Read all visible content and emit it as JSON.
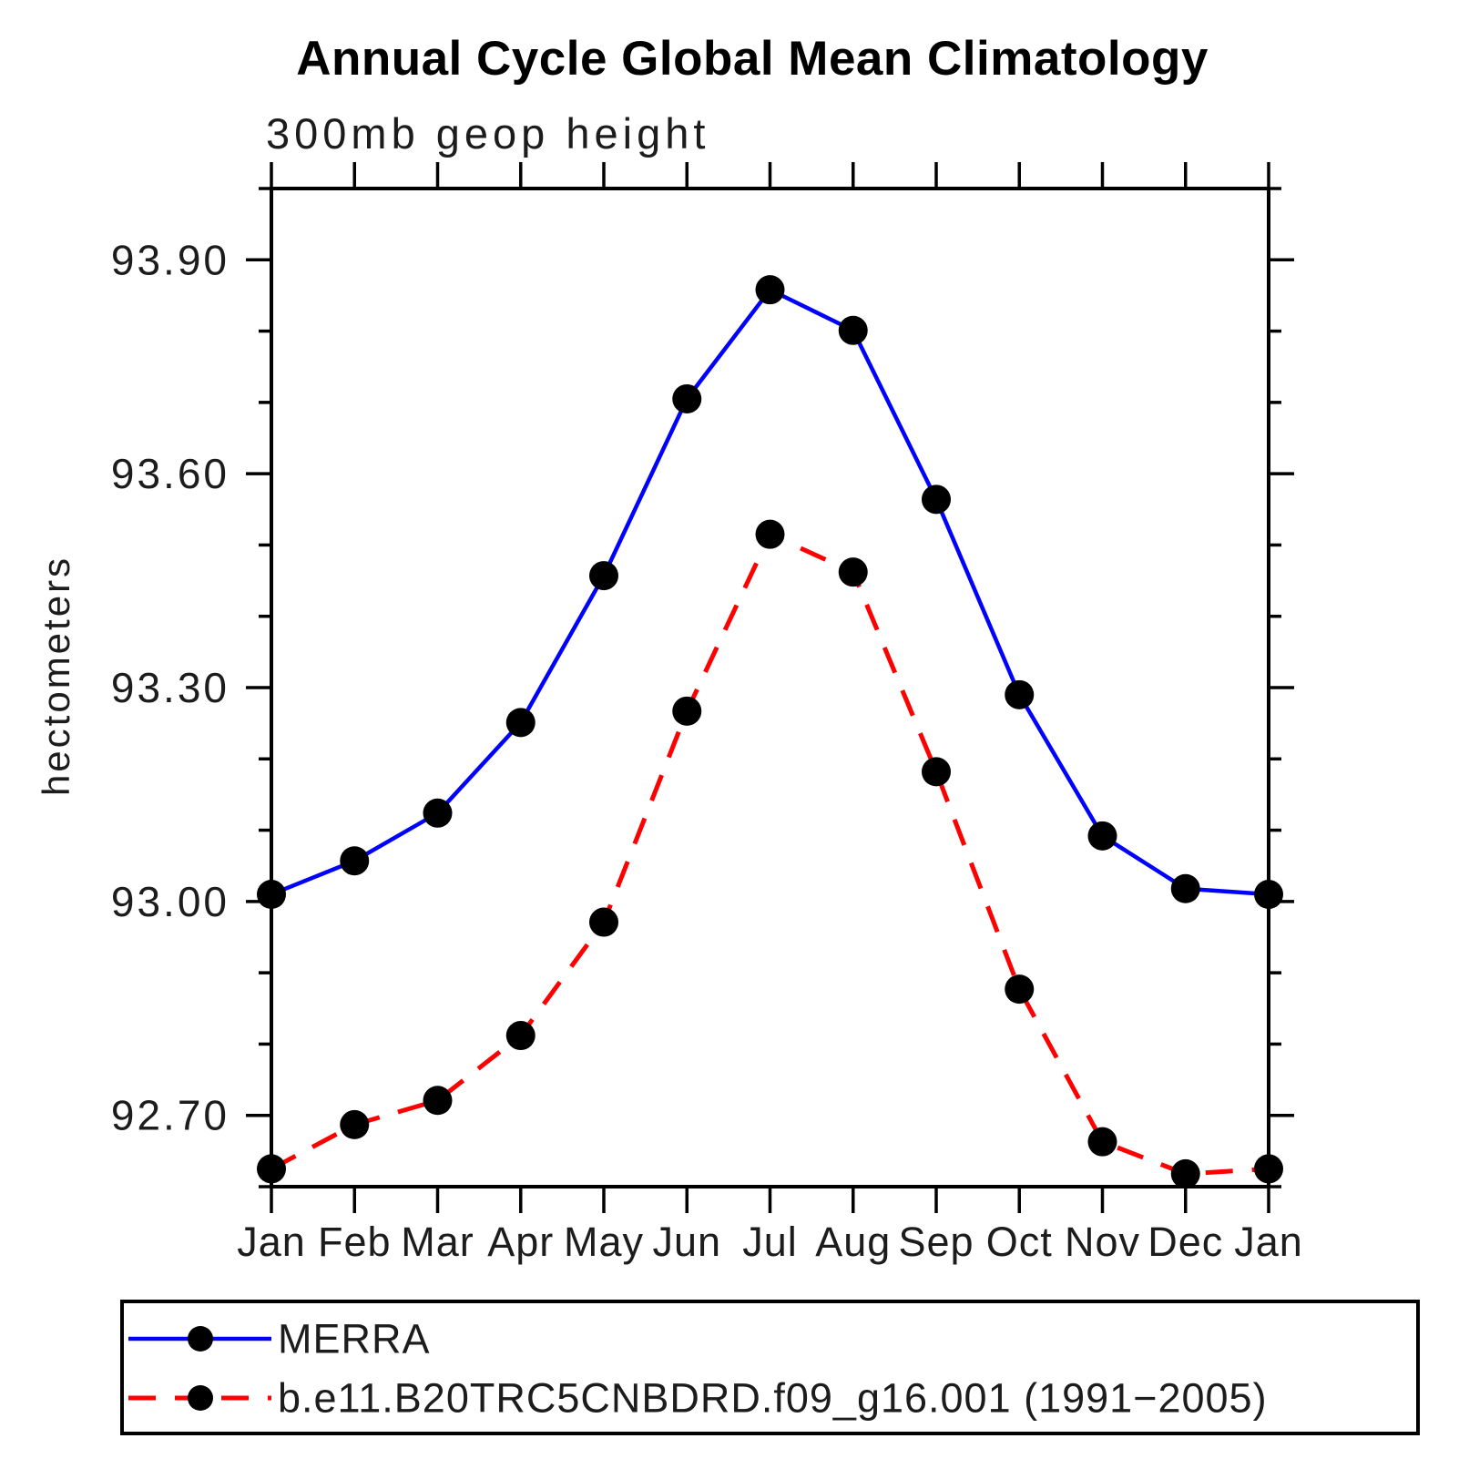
{
  "chart_data": {
    "type": "line",
    "title": "Annual Cycle Global Mean Climatology",
    "subtitle": "300mb geop height",
    "ylabel": "hectometers",
    "categories": [
      "Jan",
      "Feb",
      "Mar",
      "Apr",
      "May",
      "Jun",
      "Jul",
      "Aug",
      "Sep",
      "Oct",
      "Nov",
      "Dec",
      "Jan"
    ],
    "series": [
      {
        "name": "MERRA",
        "color": "#0000ff",
        "line_style": "solid",
        "marker": "circle",
        "marker_color": "#000000",
        "values": [
          93.01,
          93.057,
          93.124,
          93.251,
          93.457,
          93.705,
          93.858,
          93.801,
          93.564,
          93.29,
          93.092,
          93.018,
          93.01
        ]
      },
      {
        "name": "b.e11.B20TRC5CNBDRD.f09_g16.001 (1991−2005)",
        "color": "#ff0000",
        "line_style": "dashed",
        "marker": "circle",
        "marker_color": "#000000",
        "values": [
          92.625,
          92.687,
          92.721,
          92.812,
          92.971,
          93.267,
          93.515,
          93.462,
          93.182,
          92.877,
          92.663,
          92.618,
          92.625
        ]
      }
    ],
    "ylim": [
      92.6,
      94.0
    ],
    "yticks": [
      {
        "value": 92.7,
        "label": "92.70"
      },
      {
        "value": 93.0,
        "label": "93.00"
      },
      {
        "value": 93.3,
        "label": "93.30"
      },
      {
        "value": 93.6,
        "label": "93.60"
      },
      {
        "value": 93.9,
        "label": "93.90"
      }
    ],
    "minor_tick_step": 0.1,
    "grid": false,
    "legend_position": "bottom-left"
  }
}
